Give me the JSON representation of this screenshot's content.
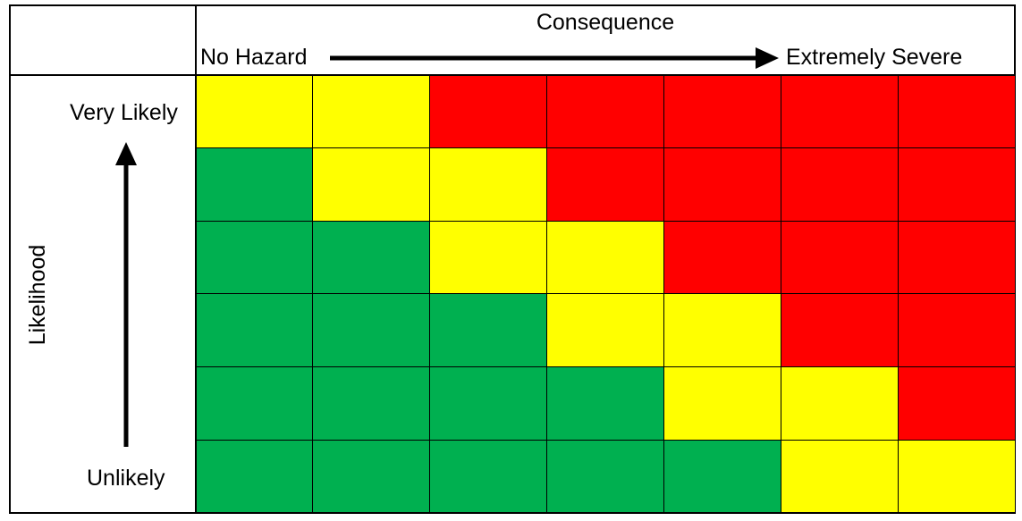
{
  "header": {
    "title": "Consequence",
    "left_label": "No Hazard",
    "right_label": "Extremely Severe"
  },
  "axis": {
    "y_title": "Likelihood",
    "top_label": "Very Likely",
    "bottom_label": "Unlikely"
  },
  "colors": {
    "G": "#00b050",
    "Y": "#ffff00",
    "R": "#ff0000"
  },
  "matrix": [
    [
      "Y",
      "Y",
      "R",
      "R",
      "R",
      "R",
      "R"
    ],
    [
      "G",
      "Y",
      "Y",
      "R",
      "R",
      "R",
      "R"
    ],
    [
      "G",
      "G",
      "Y",
      "Y",
      "R",
      "R",
      "R"
    ],
    [
      "G",
      "G",
      "G",
      "Y",
      "Y",
      "R",
      "R"
    ],
    [
      "G",
      "G",
      "G",
      "G",
      "Y",
      "Y",
      "R"
    ],
    [
      "G",
      "G",
      "G",
      "G",
      "G",
      "Y",
      "Y"
    ]
  ]
}
